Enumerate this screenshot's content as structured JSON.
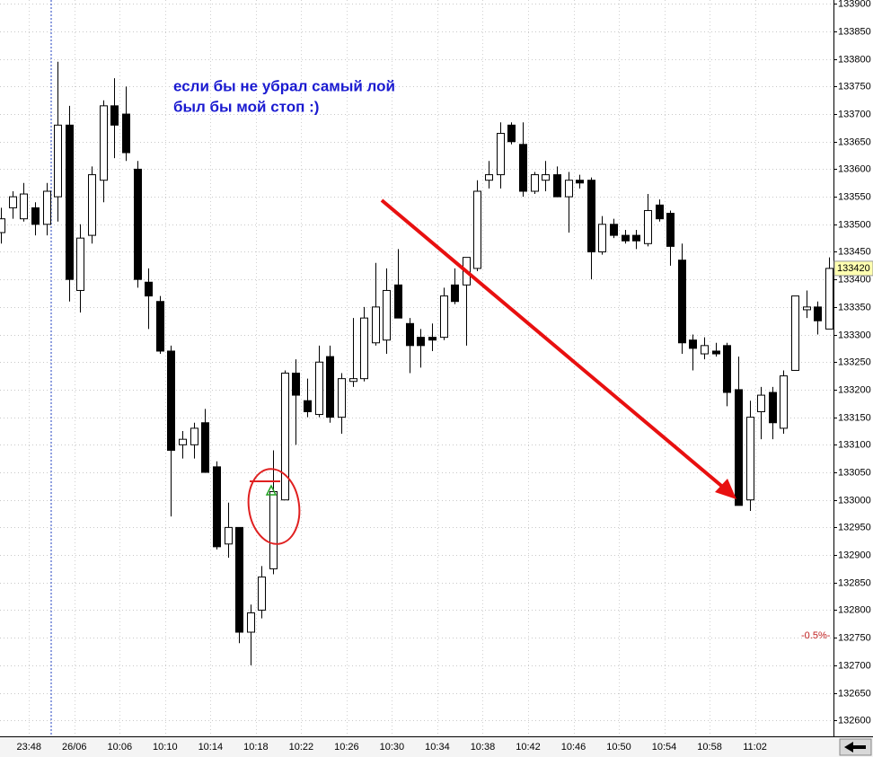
{
  "chart_data": {
    "type": "candlestick",
    "annotations": [
      "если бы не убрал самый лой",
      "был бы мой стоп :)"
    ],
    "percent_marker": "-0.5%-",
    "categories": [
      null,
      null,
      "23:48",
      null,
      null,
      null,
      "26/06",
      null,
      null,
      null,
      "10:06",
      null,
      null,
      null,
      "10:10",
      null,
      null,
      null,
      "10:14",
      null,
      null,
      null,
      "10:18",
      null,
      null,
      null,
      "10:22",
      null,
      null,
      null,
      "10:26",
      null,
      null,
      null,
      "10:30",
      null,
      null,
      null,
      "10:34",
      null,
      null,
      null,
      "10:38",
      null,
      null,
      null,
      "10:42",
      null,
      null,
      null,
      "10:46",
      null,
      null,
      null,
      "10:50",
      null,
      null,
      null,
      "10:54",
      null,
      null,
      null,
      "10:58",
      null,
      null,
      null,
      "11:02",
      null,
      null,
      null,
      null,
      null,
      null,
      null
    ],
    "open": [
      133485,
      133530,
      133510,
      133530,
      133500,
      133550,
      133680,
      133380,
      133480,
      133580,
      133715,
      133700,
      133600,
      133395,
      133360,
      133270,
      133100,
      133100,
      133140,
      133060,
      132920,
      132950,
      132760,
      132800,
      132875,
      133000,
      133230,
      133180,
      133155,
      133260,
      133150,
      133215,
      133220,
      133285,
      133290,
      133390,
      133320,
      133295,
      133295,
      133295,
      133390,
      133390,
      133420,
      133580,
      133590,
      133680,
      133645,
      133560,
      133580,
      133590,
      133550,
      133580,
      133580,
      133450,
      133500,
      133480,
      133480,
      133465,
      133535,
      133520,
      133435,
      133290,
      133265,
      133270,
      133280,
      133200,
      133000,
      133160,
      133195,
      133130,
      133235,
      133345,
      133350,
      133310
    ],
    "high": [
      133530,
      133560,
      133575,
      133540,
      133575,
      133795,
      133715,
      133500,
      133605,
      133725,
      133765,
      133750,
      133615,
      133420,
      133370,
      133280,
      133125,
      133140,
      133165,
      133070,
      132995,
      132950,
      132810,
      132880,
      133090,
      133235,
      133255,
      133220,
      133280,
      133280,
      133230,
      133330,
      133350,
      133430,
      133420,
      133455,
      133330,
      133310,
      133320,
      133385,
      133420,
      133440,
      133580,
      133615,
      133685,
      133685,
      133685,
      133595,
      133615,
      133605,
      133595,
      133590,
      133585,
      133515,
      133510,
      133490,
      133490,
      133555,
      133545,
      133525,
      133465,
      133300,
      133295,
      133285,
      133285,
      133260,
      133180,
      133205,
      133205,
      133235,
      133370,
      133380,
      133360,
      133440
    ],
    "low": [
      133465,
      133510,
      133505,
      133480,
      133480,
      133505,
      133360,
      133340,
      133465,
      133540,
      133620,
      133615,
      133385,
      133310,
      133265,
      132970,
      133075,
      133075,
      133050,
      132910,
      132895,
      132740,
      132700,
      132785,
      132865,
      133000,
      133100,
      133150,
      133150,
      133140,
      133120,
      133205,
      133215,
      133280,
      133265,
      133330,
      133230,
      133240,
      133270,
      133290,
      133355,
      133280,
      133415,
      133565,
      133565,
      133645,
      133550,
      133555,
      133560,
      133550,
      133485,
      133565,
      133400,
      133445,
      133475,
      133465,
      133455,
      133460,
      133505,
      133425,
      133265,
      133235,
      133255,
      133260,
      133170,
      132990,
      132980,
      133110,
      133110,
      133120,
      133235,
      133330,
      133300,
      133310
    ],
    "close": [
      133510,
      133550,
      133555,
      133500,
      133560,
      133680,
      133400,
      133475,
      133590,
      133715,
      133680,
      133630,
      133400,
      133370,
      133270,
      133090,
      133110,
      133130,
      133050,
      132915,
      132950,
      132760,
      132795,
      132860,
      133015,
      133230,
      133190,
      133160,
      133250,
      133150,
      133220,
      133220,
      133330,
      133350,
      133380,
      133330,
      133280,
      133280,
      133290,
      133370,
      133360,
      133440,
      133560,
      133590,
      133665,
      133650,
      133560,
      133590,
      133590,
      133550,
      133580,
      133575,
      133450,
      133500,
      133480,
      133470,
      133470,
      133525,
      133510,
      133460,
      133285,
      133275,
      133280,
      133265,
      133195,
      132990,
      133150,
      133190,
      133140,
      133225,
      133370,
      133350,
      133325,
      133420
    ],
    "up_color": "#ffffff",
    "down_color": "#000000",
    "ylim": [
      132571,
      133907
    ],
    "yticks": [
      132600,
      132650,
      132700,
      132750,
      132800,
      132850,
      132900,
      132950,
      133000,
      133050,
      133100,
      133150,
      133200,
      133250,
      133300,
      133350,
      133400,
      133450,
      133500,
      133550,
      133600,
      133650,
      133700,
      133750,
      133800,
      133850,
      133900
    ],
    "grid": true
  }
}
